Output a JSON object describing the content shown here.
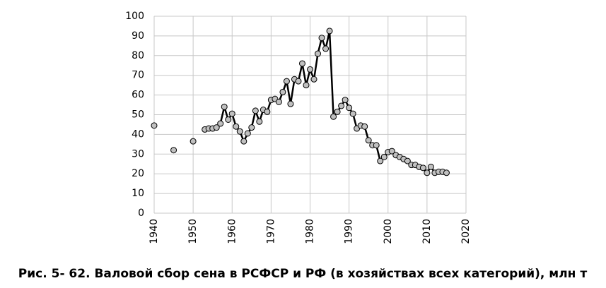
{
  "chart_data": {
    "type": "line",
    "title": "Рис. 5- 62. Валовой сбор сена в РСФСР и РФ (в хозяйствах всех категорий), млн т",
    "x": [
      1940,
      1941,
      1942,
      1943,
      1944,
      1945,
      1946,
      1947,
      1948,
      1949,
      1950,
      1951,
      1952,
      1953,
      1954,
      1955,
      1956,
      1957,
      1958,
      1959,
      1960,
      1961,
      1962,
      1963,
      1964,
      1965,
      1966,
      1967,
      1968,
      1969,
      1970,
      1971,
      1972,
      1973,
      1974,
      1975,
      1976,
      1977,
      1978,
      1979,
      1980,
      1981,
      1982,
      1983,
      1984,
      1985,
      1986,
      1987,
      1988,
      1989,
      1990,
      1991,
      1992,
      1993,
      1994,
      1995,
      1996,
      1997,
      1998,
      1999,
      2000,
      2001,
      2002,
      2003,
      2004,
      2005,
      2006,
      2007,
      2008,
      2009,
      2010,
      2011,
      2012,
      2013,
      2014,
      2015
    ],
    "series": [
      {
        "color": "#000000",
        "marker_color": "#c0c0c0",
        "values": [
          44.5,
          null,
          null,
          null,
          null,
          32,
          null,
          null,
          null,
          null,
          36.5,
          null,
          null,
          42.5,
          43,
          43,
          43.5,
          45.5,
          54,
          47.5,
          50.5,
          44,
          41.5,
          36.5,
          40.5,
          43.5,
          52,
          46.5,
          52.5,
          51.5,
          57.5,
          58,
          56.5,
          61.5,
          67,
          55.5,
          68,
          67,
          76,
          65,
          73,
          68,
          81,
          89,
          83.5,
          92.5,
          49,
          51.5,
          54.5,
          57.5,
          53.5,
          50.5,
          43,
          44.5,
          44,
          37,
          34.5,
          34.5,
          26.5,
          28.5,
          31,
          31.5,
          29.5,
          28.5,
          27.5,
          26.5,
          24.5,
          24.5,
          23.5,
          23,
          20.5,
          23.5,
          20.5,
          21,
          21,
          20.5
        ]
      }
    ],
    "xlim": [
      1940,
      2020
    ],
    "xticks": [
      1940,
      1950,
      1960,
      1970,
      1980,
      1990,
      2000,
      2010,
      2020
    ],
    "ylim": [
      0,
      100
    ],
    "yticks": [
      0,
      10,
      20,
      30,
      40,
      50,
      60,
      70,
      80,
      90,
      100
    ],
    "grid": true
  }
}
